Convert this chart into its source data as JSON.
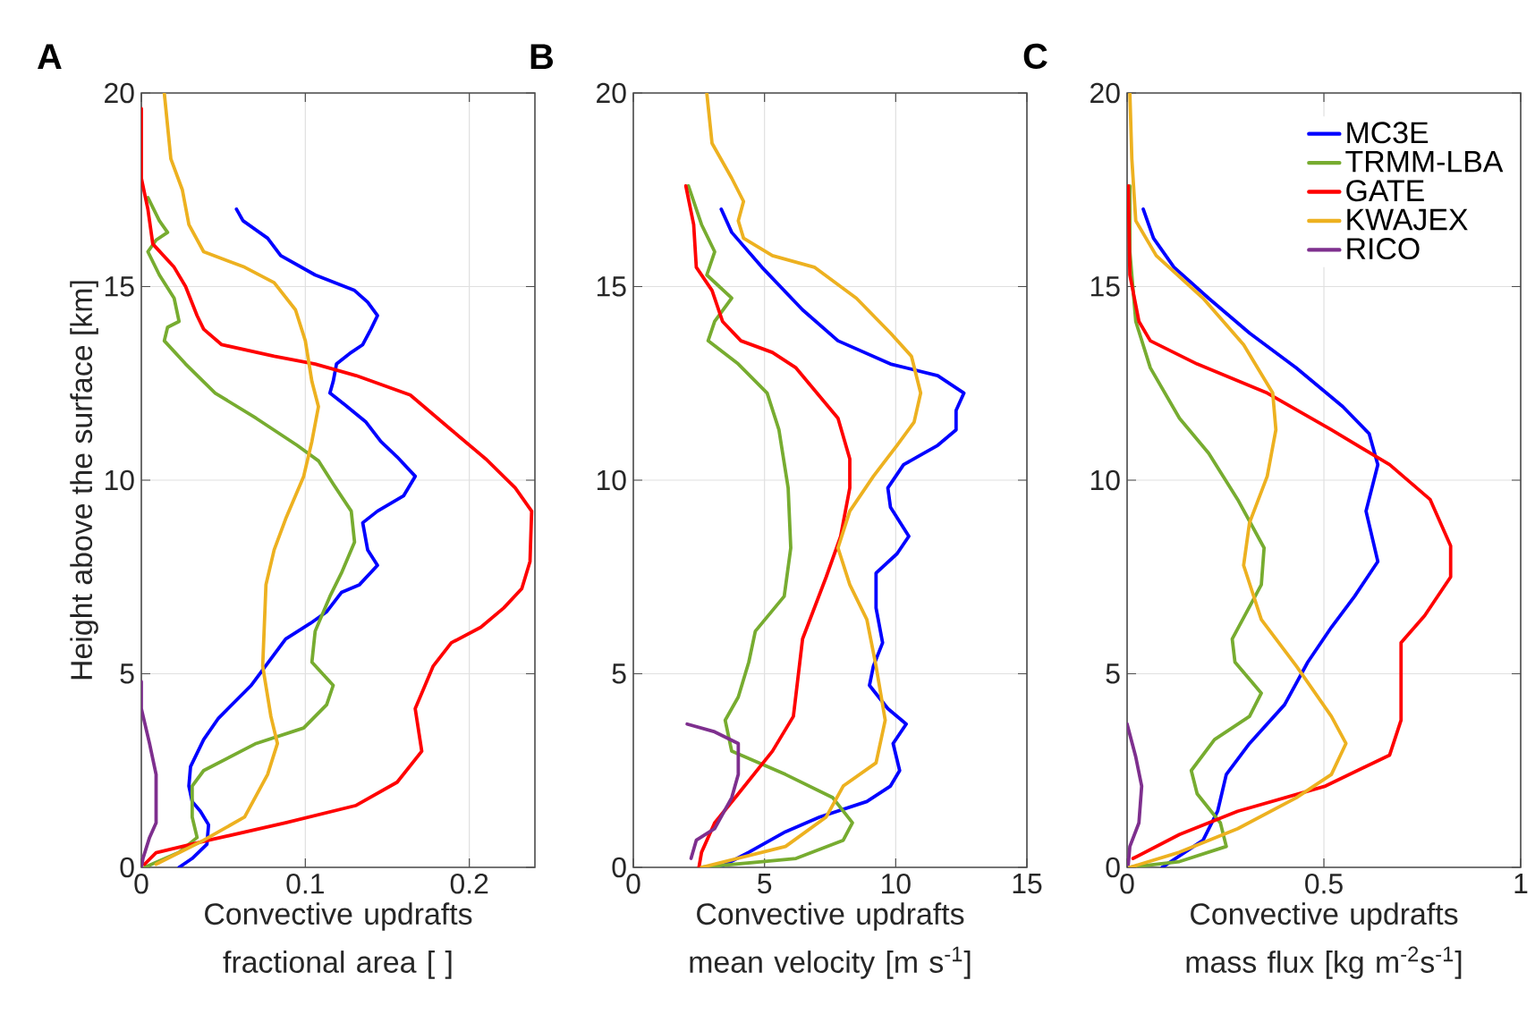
{
  "chart_data": [
    {
      "type": "line",
      "title": "A",
      "xlabel": "Convective updrafts fractional area [ ]",
      "ylabel": "Height above the surface [km]",
      "xlim": [
        0,
        0.24
      ],
      "xticks": [
        0,
        0.1,
        0.2
      ],
      "ylim": [
        0,
        20
      ],
      "yticks": [
        0,
        5,
        10,
        15,
        20
      ],
      "grid": true,
      "series": [
        {
          "color": "#0000ff",
          "x": [
            0.058,
            0.062,
            0.077,
            0.085,
            0.106,
            0.13,
            0.138,
            0.144,
            0.14,
            0.135,
            0.128,
            0.119,
            0.117,
            0.115,
            0.124,
            0.137,
            0.146,
            0.156,
            0.167,
            0.16,
            0.144,
            0.135,
            0.138,
            0.144,
            0.133,
            0.122,
            0.113,
            0.103,
            0.088,
            0.081,
            0.067,
            0.047,
            0.038,
            0.03,
            0.029,
            0.031,
            0.036,
            0.041,
            0.04,
            0.031,
            0.023
          ],
          "values": [
            17.0,
            16.7,
            16.25,
            15.8,
            15.3,
            14.9,
            14.6,
            14.25,
            13.9,
            13.5,
            13.3,
            13.0,
            12.55,
            12.25,
            11.95,
            11.5,
            11.0,
            10.6,
            10.1,
            9.6,
            9.2,
            8.9,
            8.2,
            7.8,
            7.3,
            7.1,
            6.6,
            6.3,
            5.9,
            5.5,
            4.7,
            3.85,
            3.3,
            2.6,
            2.1,
            1.7,
            1.45,
            1.1,
            0.6,
            0.23,
            0
          ]
        },
        {
          "color": "#77ac30",
          "x": [
            0.004,
            0.011,
            0.016,
            0.009,
            0.004,
            0.011,
            0.02,
            0.023,
            0.016,
            0.014,
            0.027,
            0.045,
            0.07,
            0.095,
            0.108,
            0.117,
            0.128,
            0.13,
            0.122,
            0.115,
            0.106,
            0.104,
            0.117,
            0.113,
            0.099,
            0.07,
            0.038,
            0.031,
            0.031,
            0.034,
            0.023,
            0.002
          ],
          "values": [
            17.3,
            16.7,
            16.4,
            16.2,
            15.9,
            15.3,
            14.7,
            14.1,
            13.95,
            13.6,
            13.0,
            12.25,
            11.6,
            10.9,
            10.5,
            9.9,
            9.2,
            8.4,
            7.6,
            7.0,
            6.1,
            5.3,
            4.7,
            4.2,
            3.6,
            3.2,
            2.5,
            2.1,
            1.3,
            0.77,
            0.39,
            0
          ]
        },
        {
          "color": "#ff0000",
          "x": [
            0,
            0,
            0.004,
            0.007,
            0.02,
            0.027,
            0.034,
            0.038,
            0.049,
            0.081,
            0.106,
            0.131,
            0.164,
            0.189,
            0.21,
            0.228,
            0.238,
            0.237,
            0.232,
            0.221,
            0.207,
            0.189,
            0.178,
            0.167,
            0.171,
            0.156,
            0.131,
            0.088,
            0.041,
            0.009,
            0.002
          ],
          "values": [
            19.6,
            17.8,
            17.0,
            16.1,
            15.5,
            15.0,
            14.25,
            13.9,
            13.5,
            13.2,
            13.0,
            12.7,
            12.2,
            11.3,
            10.55,
            9.8,
            9.2,
            7.9,
            7.2,
            6.7,
            6.2,
            5.8,
            5.2,
            4.1,
            3.0,
            2.2,
            1.6,
            1.15,
            0.7,
            0.38,
            0.08
          ]
        },
        {
          "color": "#edb120",
          "x": [
            0.014,
            0.018,
            0.025,
            0.029,
            0.038,
            0.063,
            0.081,
            0.094,
            0.1,
            0.104,
            0.108,
            0.104,
            0.099,
            0.088,
            0.081,
            0.076,
            0.074,
            0.079,
            0.083,
            0.077,
            0.063,
            0.038,
            0.009
          ],
          "values": [
            20,
            18.3,
            17.5,
            16.6,
            15.9,
            15.5,
            15.1,
            14.4,
            13.6,
            12.55,
            11.9,
            11.0,
            10.1,
            9.0,
            8.2,
            7.3,
            5.2,
            3.9,
            3.2,
            2.4,
            1.3,
            0.7,
            0.08
          ]
        },
        {
          "color": "#7e2f8e",
          "x": [
            0,
            0,
            0.005,
            0.009,
            0.009,
            0.005,
            0.001,
            0
          ],
          "values": [
            4.8,
            4.1,
            3.2,
            2.4,
            1.15,
            0.77,
            0.23,
            0
          ]
        }
      ]
    },
    {
      "type": "line",
      "title": "B",
      "xlabel": "Convective updrafts mean velocity [m s$^{-1}$]",
      "xlim": [
        0,
        15
      ],
      "xticks": [
        0,
        5,
        10,
        15
      ],
      "ylim": [
        0,
        20
      ],
      "yticks": [
        0,
        5,
        10,
        15,
        20
      ],
      "grid": true,
      "series": [
        {
          "color": "#0000ff",
          "x": [
            3.35,
            3.75,
            4.9,
            6.45,
            7.8,
            9.8,
            11.6,
            12.6,
            12.3,
            12.3,
            11.6,
            10.3,
            9.7,
            9.8,
            10.5,
            10.05,
            9.25,
            9.25,
            9.5,
            9.15,
            9.0,
            9.7,
            10.4,
            9.9,
            10.15,
            9.8,
            8.9,
            7.1,
            5.8,
            4.4,
            3.3
          ],
          "values": [
            17.0,
            16.4,
            15.5,
            14.4,
            13.6,
            13.0,
            12.7,
            12.25,
            11.8,
            11.3,
            10.9,
            10.4,
            9.8,
            9.3,
            8.55,
            8.1,
            7.6,
            6.7,
            5.8,
            5.2,
            4.7,
            4.1,
            3.7,
            3.2,
            2.5,
            2.1,
            1.7,
            1.3,
            0.92,
            0.39,
            0
          ]
        },
        {
          "color": "#77ac30",
          "x": [
            2.1,
            2.6,
            3.1,
            2.8,
            3.75,
            3.1,
            2.85,
            4.0,
            5.1,
            5.55,
            5.9,
            6.0,
            5.75,
            4.65,
            4.4,
            4.0,
            3.5,
            3.75,
            5.8,
            7.6,
            8.35,
            8.0,
            6.2,
            2.6
          ],
          "values": [
            17.6,
            16.6,
            15.9,
            15.3,
            14.7,
            14.1,
            13.6,
            13.0,
            12.25,
            11.3,
            9.8,
            8.25,
            7.0,
            6.1,
            5.3,
            4.4,
            3.8,
            3.0,
            2.4,
            1.8,
            1.15,
            0.7,
            0.23,
            0
          ]
        },
        {
          "color": "#ff0000",
          "x": [
            2.0,
            2.3,
            2.4,
            3.0,
            3.4,
            4.1,
            5.3,
            6.2,
            7.0,
            7.8,
            8.25,
            8.25,
            7.9,
            7.35,
            6.45,
            6.1,
            5.3,
            4.0,
            3.1,
            2.6,
            2.5
          ],
          "values": [
            17.6,
            16.6,
            15.5,
            14.9,
            14.1,
            13.6,
            13.3,
            12.9,
            12.25,
            11.6,
            10.55,
            9.8,
            8.55,
            7.5,
            5.9,
            3.9,
            3.0,
            1.9,
            1.15,
            0.39,
            0
          ]
        },
        {
          "color": "#edb120",
          "x": [
            2.8,
            3.0,
            3.75,
            4.2,
            4.0,
            4.2,
            5.3,
            6.9,
            8.5,
            9.8,
            10.6,
            10.95,
            10.7,
            10.05,
            9.15,
            8.25,
            7.8,
            8.25,
            8.9,
            9.25,
            9.6,
            9.25,
            8.0,
            7.35,
            5.8,
            2.6
          ],
          "values": [
            20,
            18.7,
            17.8,
            17.2,
            16.7,
            16.25,
            15.8,
            15.5,
            14.7,
            13.8,
            13.2,
            12.25,
            11.5,
            10.9,
            10.1,
            9.2,
            8.25,
            7.3,
            6.4,
            5.2,
            3.8,
            2.7,
            2.1,
            1.3,
            0.54,
            0
          ]
        },
        {
          "color": "#7e2f8e",
          "x": [
            2.05,
            3.1,
            4.0,
            4.0,
            3.75,
            3.1,
            2.4,
            2.2
          ],
          "values": [
            3.7,
            3.5,
            3.2,
            2.4,
            1.8,
            1.0,
            0.7,
            0.23
          ]
        }
      ]
    },
    {
      "type": "line",
      "title": "C",
      "xlabel": "Convective updrafts mass flux [kg m$^{-2}$s$^{-1}$]",
      "xlim": [
        0,
        1
      ],
      "xticks": [
        0,
        0.5,
        1
      ],
      "ylim": [
        0,
        20
      ],
      "yticks": [
        0,
        5,
        10,
        15,
        20
      ],
      "grid": true,
      "legend": "top right",
      "series": [
        {
          "name": "MC3E",
          "color": "#0000ff",
          "x": [
            0.041,
            0.067,
            0.119,
            0.207,
            0.311,
            0.43,
            0.548,
            0.615,
            0.637,
            0.607,
            0.637,
            0.578,
            0.519,
            0.459,
            0.4,
            0.311,
            0.252,
            0.23,
            0.193,
            0.089
          ],
          "values": [
            17.0,
            16.25,
            15.5,
            14.7,
            13.8,
            12.9,
            11.9,
            11.2,
            10.4,
            9.2,
            7.9,
            7.0,
            6.2,
            5.3,
            4.2,
            3.2,
            2.4,
            1.45,
            0.7,
            0
          ]
        },
        {
          "name": "TRMM-LBA",
          "color": "#77ac30",
          "x": [
            0.007,
            0.007,
            0.022,
            0.059,
            0.133,
            0.207,
            0.281,
            0.348,
            0.341,
            0.267,
            0.274,
            0.341,
            0.311,
            0.222,
            0.163,
            0.178,
            0.237,
            0.252,
            0.133,
            0.007
          ],
          "values": [
            17.6,
            15.9,
            14.1,
            12.9,
            11.6,
            10.7,
            9.5,
            8.25,
            7.3,
            5.9,
            5.3,
            4.5,
            3.9,
            3.3,
            2.5,
            1.9,
            1.15,
            0.54,
            0.15,
            0
          ]
        },
        {
          "name": "GATE",
          "color": "#ff0000",
          "x": [
            0.003,
            0.007,
            0.03,
            0.059,
            0.178,
            0.356,
            0.519,
            0.667,
            0.77,
            0.822,
            0.822,
            0.756,
            0.696,
            0.696,
            0.667,
            0.504,
            0.281,
            0.133,
            0.015
          ],
          "values": [
            17.6,
            15.3,
            14.1,
            13.6,
            13.0,
            12.25,
            11.3,
            10.4,
            9.5,
            8.3,
            7.5,
            6.5,
            5.8,
            3.8,
            2.9,
            2.1,
            1.45,
            0.85,
            0.23
          ]
        },
        {
          "name": "KWAJEX",
          "color": "#edb120",
          "x": [
            0.007,
            0.012,
            0.022,
            0.074,
            0.193,
            0.296,
            0.37,
            0.378,
            0.356,
            0.311,
            0.296,
            0.341,
            0.43,
            0.519,
            0.556,
            0.519,
            0.43,
            0.281,
            0.133,
            0.007
          ],
          "values": [
            20,
            18.3,
            16.7,
            15.8,
            14.7,
            13.5,
            12.25,
            11.3,
            10.1,
            8.9,
            7.8,
            6.4,
            5.2,
            3.9,
            3.2,
            2.4,
            1.8,
            1.0,
            0.39,
            0
          ]
        },
        {
          "name": "RICO",
          "color": "#7e2f8e",
          "x": [
            0,
            0.022,
            0.037,
            0.03,
            0.007,
            0.003
          ],
          "values": [
            3.7,
            2.85,
            2.1,
            1.15,
            0.54,
            0.08
          ]
        }
      ]
    }
  ]
}
